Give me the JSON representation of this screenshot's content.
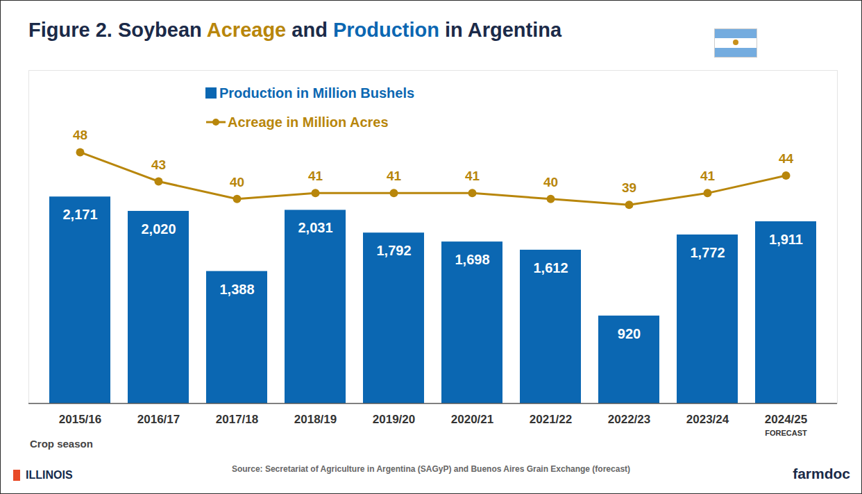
{
  "chart_data": {
    "type": "bar",
    "title": "Figure 2. Soybean Acreage and Production in Argentina",
    "x_label": "Crop season",
    "source": "Source: Secretariat of Agriculture in Argentina (SAGyP) and Buenos Aires Grain Exchange (forecast)",
    "logos": [
      "ILLINOIS",
      "farmdoc"
    ],
    "categories": [
      "2015/16",
      "2016/17",
      "2017/18",
      "2018/19",
      "2019/20",
      "2020/21",
      "2021/22",
      "2022/23",
      "2023/24",
      "2024/25"
    ],
    "annotations": [
      {
        "category": "2024/25",
        "text": "FORECAST"
      }
    ],
    "series": [
      {
        "name": "Production in Million Bushels",
        "type": "bar",
        "color": "#0b67b2",
        "values": [
          2171,
          2020,
          1388,
          2031,
          1792,
          1698,
          1612,
          920,
          1772,
          1911
        ],
        "value_labels": [
          "2,171",
          "2,020",
          "1,388",
          "2,031",
          "1,792",
          "1,698",
          "1,612",
          "920",
          "1,772",
          "1,911"
        ]
      },
      {
        "name": "Acreage in Million Acres",
        "type": "line",
        "axis": "y2",
        "color": "#b8860b",
        "marker": "circle",
        "values": [
          48,
          43,
          40,
          41,
          41,
          41,
          40,
          39,
          41,
          44
        ]
      }
    ],
    "ylim": [
      0,
      3500
    ],
    "yticks": [],
    "y2lim": [
      5,
      62
    ],
    "y2ticks": [],
    "data_labels": true,
    "tick_labels": "x",
    "legend": "top-left",
    "grid": false
  }
}
